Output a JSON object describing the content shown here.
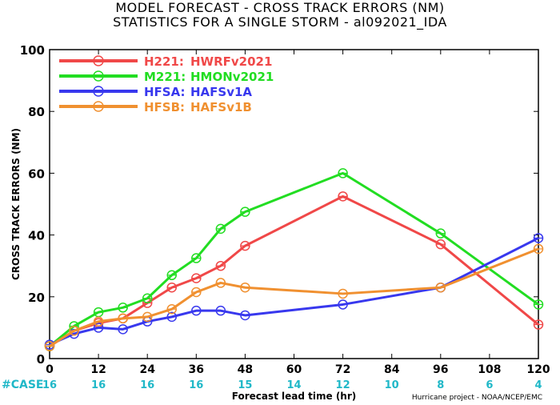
{
  "header": {
    "title": "MODEL FORECAST - CROSS TRACK ERRORS (NM)",
    "subtitle": "STATISTICS FOR A SINGLE STORM - al092021_IDA"
  },
  "footer": {
    "credit": "Hurricane project - NOAA/NCEP/EMC"
  },
  "chart_data": {
    "type": "line",
    "title": "MODEL FORECAST - CROSS TRACK ERRORS (NM)",
    "subtitle": "STATISTICS FOR A SINGLE STORM - al092021_IDA",
    "xlabel": "Forecast lead time (hr)",
    "ylabel": "CROSS TRACK ERRORS (NM)",
    "xlim": [
      0,
      120
    ],
    "ylim": [
      0,
      100
    ],
    "xticks": [
      0,
      12,
      24,
      36,
      48,
      60,
      72,
      84,
      96,
      108,
      120
    ],
    "yticks": [
      0,
      20,
      40,
      60,
      80,
      100
    ],
    "grid": false,
    "legend_position": "top-left",
    "case_label": "#CASE",
    "case_counts": [
      {
        "x": 0,
        "n": "16"
      },
      {
        "x": 12,
        "n": "16"
      },
      {
        "x": 24,
        "n": "16"
      },
      {
        "x": 36,
        "n": "16"
      },
      {
        "x": 48,
        "n": "15"
      },
      {
        "x": 60,
        "n": "14"
      },
      {
        "x": 72,
        "n": "12"
      },
      {
        "x": 84,
        "n": "10"
      },
      {
        "x": 96,
        "n": "8"
      },
      {
        "x": 108,
        "n": "6"
      },
      {
        "x": 120,
        "n": "4"
      }
    ],
    "series": [
      {
        "name": "H221:",
        "label": "HWRFv2021",
        "color": "#f04848",
        "x": [
          0,
          6,
          12,
          18,
          24,
          30,
          36,
          42,
          48,
          72,
          96,
          120
        ],
        "y": [
          4,
          9,
          11.5,
          13,
          18,
          23,
          26,
          30,
          36.5,
          52.5,
          37,
          11
        ]
      },
      {
        "name": "M221:",
        "label": "HMONv2021",
        "color": "#22dd22",
        "x": [
          0,
          6,
          12,
          18,
          24,
          30,
          36,
          42,
          48,
          72,
          96,
          120
        ],
        "y": [
          4,
          10.5,
          15,
          16.5,
          19.5,
          27,
          32.5,
          42,
          47.5,
          60,
          40.5,
          17.5
        ]
      },
      {
        "name": "HFSA:",
        "label": "HAFSv1A",
        "color": "#3838ee",
        "x": [
          0,
          6,
          12,
          18,
          24,
          30,
          36,
          42,
          48,
          72,
          96,
          120
        ],
        "y": [
          4.5,
          8,
          10,
          9.5,
          12,
          13.5,
          15.5,
          15.5,
          14,
          17.5,
          23,
          39
        ]
      },
      {
        "name": "HFSB:",
        "label": "HAFSv1B",
        "color": "#f09030",
        "x": [
          0,
          6,
          12,
          18,
          24,
          30,
          36,
          42,
          48,
          72,
          96,
          120
        ],
        "y": [
          4,
          9,
          12,
          13,
          13.5,
          16,
          21.5,
          24.5,
          23,
          21,
          23,
          35.5
        ]
      }
    ]
  }
}
